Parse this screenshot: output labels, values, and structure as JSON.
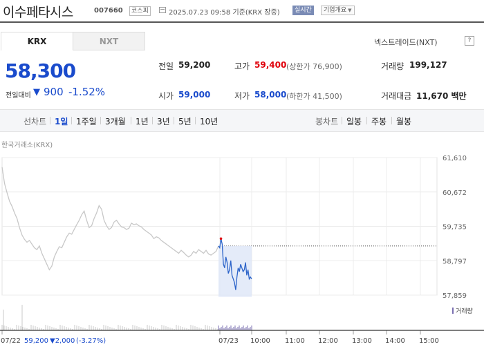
{
  "header": {
    "name": "이수페타시스",
    "code": "007660",
    "market": "코스피",
    "datetime": "2025.07.23 09:58",
    "basis": "기준(KRX 장중)",
    "realtime_badge": "실시간",
    "company_button": "기업개요"
  },
  "tabs": [
    {
      "label": "KRX",
      "active": true
    },
    {
      "label": "NXT",
      "active": false
    }
  ],
  "nxt_trade": "넥스트레이드(NXT)",
  "nxt_help": "?",
  "quote": {
    "price": "58,300",
    "change_label": "전일대비",
    "change_value": "900",
    "change_pct": "-1.52%",
    "direction": "down"
  },
  "stats": {
    "prev_close": {
      "label": "전일",
      "value": "59,200"
    },
    "high": {
      "label": "고가",
      "value": "59,400",
      "sub": "(상한가 76,900)"
    },
    "volume": {
      "label": "거래량",
      "value": "199,127"
    },
    "open": {
      "label": "시가",
      "value": "59,000"
    },
    "low": {
      "label": "저가",
      "value": "58,000",
      "sub": "(하한가 41,500)"
    },
    "amount": {
      "label": "거래대금",
      "value": "11,670",
      "unit": "백만"
    }
  },
  "period_bar": {
    "line_label": "선차트",
    "line_periods": [
      "1일",
      "1주일",
      "3개월",
      "1년",
      "3년",
      "5년",
      "10년"
    ],
    "active_period": "1일",
    "candle_label": "봉차트",
    "candle_periods": [
      "일봉",
      "주봉",
      "월봉"
    ]
  },
  "chart_source": "한국거래소(KRX)",
  "volume_legend": "거래량",
  "colors": {
    "accent_blue": "#1a4bcc",
    "up_red": "#e0000b",
    "prev_day_line": "#c8c8c8",
    "intraday_line": "#2b63c9",
    "intraday_fill": "#dde6f7",
    "volume_bar": "#7a6fb0"
  },
  "chart_data": {
    "type": "line",
    "y_ticks": [
      "61,610",
      "60,672",
      "59,735",
      "58,797",
      "57,859"
    ],
    "ylim": [
      57859,
      61610
    ],
    "x_ticks": [
      "07/22",
      "07/23",
      "10:00",
      "11:00",
      "12:00",
      "13:00",
      "14:00",
      "15:00"
    ],
    "reference_line": 59200,
    "footer": {
      "date": "07/22",
      "price": "59,200",
      "change": "▼2,000",
      "pct": "(-3.27%)"
    },
    "series": [
      {
        "values": [
          61350,
          60900,
          60650,
          60420,
          60280,
          60100,
          59950,
          59700,
          59500,
          59380,
          59300,
          59350,
          59250,
          59150,
          59100,
          59200,
          59000,
          58850,
          58700,
          58550,
          58650,
          58900,
          59050,
          59180,
          59150,
          59300,
          59450,
          59550,
          59520,
          59650,
          59780,
          59900,
          60050,
          60150,
          59900,
          59700,
          59750,
          59950,
          60100,
          60300,
          60200,
          59900,
          59750,
          59650,
          59700,
          59850,
          59900,
          59800,
          59720,
          59700,
          59650,
          59680,
          59820,
          59780,
          59800,
          59750,
          59720,
          59650,
          59600,
          59550,
          59500,
          59400,
          59450,
          59420,
          59350,
          59300,
          59250,
          59200,
          59150,
          59100,
          59050,
          59000,
          59080,
          59020,
          58950,
          58900,
          58950,
          59050,
          59000,
          59100,
          59050,
          59000,
          59080,
          58980,
          58950,
          59000,
          59050,
          59200
        ]
      },
      {
        "values": [
          59200,
          59150,
          59400,
          59250,
          58700,
          58600,
          58900,
          58750,
          58450,
          58550,
          58800,
          58400,
          58300,
          58200,
          58000,
          58350,
          58600,
          58500,
          58700,
          58600,
          58500,
          58550,
          58750,
          58400,
          58550,
          58300,
          58350,
          58300
        ]
      }
    ]
  }
}
